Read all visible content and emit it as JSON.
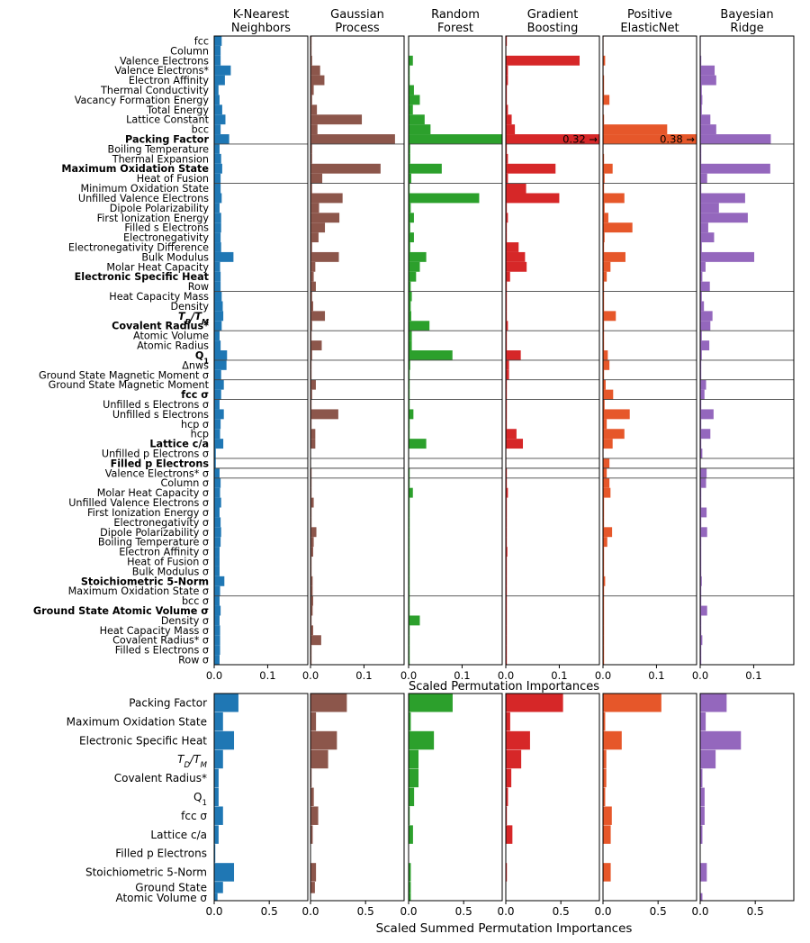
{
  "chart_data": {
    "type": "bar",
    "orientation": "horizontal",
    "models": [
      {
        "title": [
          "K-Nearest",
          "Neighbors"
        ],
        "color": "#1f77b4"
      },
      {
        "title": [
          "Gaussian",
          "Process"
        ],
        "color": "#8c564b"
      },
      {
        "title": [
          "Random",
          "Forest"
        ],
        "color": "#2ca02c"
      },
      {
        "title": [
          "Gradient",
          "Boosting"
        ],
        "color": "#d62728"
      },
      {
        "title": [
          "Positive",
          "ElasticNet"
        ],
        "color": "#e6572a"
      },
      {
        "title": [
          "Bayesian",
          "Ridge"
        ],
        "color": "#9467bd"
      }
    ],
    "top": {
      "xlabel": "Scaled Permutation Importances",
      "xlim": [
        0,
        0.175
      ],
      "xticks": [
        0,
        0.1
      ],
      "xtick_labels": [
        "0.0",
        "0.1"
      ],
      "annotations": [
        {
          "model": 3,
          "text": "0.32 →",
          "feature": "Packing Factor"
        },
        {
          "model": 4,
          "text": "0.38 →",
          "feature": "Packing Factor"
        }
      ],
      "group_boundaries_after_index": [
        10,
        14,
        25,
        29,
        32,
        34,
        36,
        42,
        43,
        44,
        56
      ],
      "features": [
        {
          "label": "fcc",
          "bold": false,
          "values": [
            0.014,
            0.002,
            0.001,
            0.002,
            0.001,
            0.001
          ]
        },
        {
          "label": "Column",
          "bold": false,
          "values": [
            0.012,
            0.002,
            0.001,
            0.001,
            0.001,
            0.001
          ]
        },
        {
          "label": "Valence Electrons",
          "bold": false,
          "values": [
            0.012,
            0.003,
            0.008,
            0.138,
            0.004,
            0.002
          ]
        },
        {
          "label": "Valence Electrons*",
          "bold": false,
          "values": [
            0.031,
            0.018,
            0.002,
            0.004,
            0.001,
            0.027
          ]
        },
        {
          "label": "Electron Affinity",
          "bold": false,
          "values": [
            0.02,
            0.026,
            0.002,
            0.004,
            0.002,
            0.03
          ]
        },
        {
          "label": "Thermal Conductivity",
          "bold": false,
          "values": [
            0.008,
            0.006,
            0.01,
            0.002,
            0.002,
            0.003
          ]
        },
        {
          "label": "Vacancy Formation Energy",
          "bold": false,
          "values": [
            0.01,
            0.003,
            0.021,
            0.002,
            0.012,
            0.004
          ]
        },
        {
          "label": "Total Energy",
          "bold": false,
          "values": [
            0.015,
            0.012,
            0.008,
            0.004,
            0.001,
            0.003
          ]
        },
        {
          "label": "Lattice Constant",
          "bold": false,
          "values": [
            0.021,
            0.096,
            0.03,
            0.011,
            0.002,
            0.019
          ]
        },
        {
          "label": "bcc",
          "bold": false,
          "values": [
            0.012,
            0.013,
            0.041,
            0.017,
            0.12,
            0.03
          ]
        },
        {
          "label": "Packing Factor",
          "bold": true,
          "values": [
            0.028,
            0.158,
            0.175,
            0.175,
            0.175,
            0.132
          ]
        },
        {
          "label": "Boiling Temperature",
          "bold": false,
          "values": [
            0.01,
            0.003,
            0.003,
            0.002,
            0.001,
            0.002
          ]
        },
        {
          "label": "Thermal Expansion",
          "bold": false,
          "values": [
            0.013,
            0.003,
            0.003,
            0.004,
            0.002,
            0.002
          ]
        },
        {
          "label": "Maximum Oxidation State",
          "bold": true,
          "values": [
            0.015,
            0.131,
            0.062,
            0.093,
            0.018,
            0.131
          ]
        },
        {
          "label": "Heat of Fusion",
          "bold": false,
          "values": [
            0.012,
            0.022,
            0.005,
            0.004,
            0.003,
            0.013
          ]
        },
        {
          "label": "Minimum Oxidation State",
          "bold": false,
          "values": [
            0.012,
            0.003,
            0.002,
            0.038,
            0.002,
            0.002
          ]
        },
        {
          "label": "Unfilled Valence Electrons",
          "bold": false,
          "values": [
            0.014,
            0.06,
            0.132,
            0.1,
            0.04,
            0.084
          ]
        },
        {
          "label": "Dipole Polarizability",
          "bold": false,
          "values": [
            0.01,
            0.016,
            0.004,
            0.002,
            0.003,
            0.035
          ]
        },
        {
          "label": "First Ionization Energy",
          "bold": false,
          "values": [
            0.013,
            0.054,
            0.01,
            0.004,
            0.01,
            0.089
          ]
        },
        {
          "label": "Filled s Electrons",
          "bold": false,
          "values": [
            0.013,
            0.027,
            0.003,
            0.002,
            0.055,
            0.015
          ]
        },
        {
          "label": "Electronegativity",
          "bold": false,
          "values": [
            0.012,
            0.015,
            0.01,
            0.002,
            0.003,
            0.026
          ]
        },
        {
          "label": "Electronegativity Difference",
          "bold": false,
          "values": [
            0.013,
            0.003,
            0.003,
            0.024,
            0.002,
            0.003
          ]
        },
        {
          "label": "Bulk Modulus",
          "bold": false,
          "values": [
            0.036,
            0.053,
            0.033,
            0.036,
            0.042,
            0.101
          ]
        },
        {
          "label": "Molar Heat Capacity",
          "bold": false,
          "values": [
            0.011,
            0.009,
            0.021,
            0.039,
            0.014,
            0.01
          ]
        },
        {
          "label": "Electronic Specific Heat",
          "bold": true,
          "values": [
            0.012,
            0.006,
            0.014,
            0.008,
            0.007,
            0.004
          ]
        },
        {
          "label": "Row",
          "bold": false,
          "values": [
            0.012,
            0.01,
            0.004,
            0.002,
            0.002,
            0.018
          ]
        },
        {
          "label": "Heat Capacity Mass",
          "bold": false,
          "values": [
            0.014,
            0.003,
            0.006,
            0.002,
            0.002,
            0.003
          ]
        },
        {
          "label": "Density",
          "bold": false,
          "values": [
            0.016,
            0.005,
            0.004,
            0.002,
            0.002,
            0.007
          ]
        },
        {
          "label": "T_D/T_M",
          "bold": true,
          "values": [
            0.017,
            0.027,
            0.005,
            0.002,
            0.024,
            0.023
          ]
        },
        {
          "label": "Covalent Radius*",
          "bold": true,
          "values": [
            0.014,
            0.003,
            0.039,
            0.004,
            0.002,
            0.019
          ]
        },
        {
          "label": "Atomic Volume",
          "bold": false,
          "values": [
            0.01,
            0.002,
            0.006,
            0.002,
            0.002,
            0.003
          ]
        },
        {
          "label": "Atomic Radius",
          "bold": false,
          "values": [
            0.012,
            0.021,
            0.006,
            0.002,
            0.002,
            0.017
          ]
        },
        {
          "label": "Q_1",
          "bold": true,
          "values": [
            0.024,
            0.003,
            0.082,
            0.028,
            0.009,
            0.003
          ]
        },
        {
          "label": "Δnws",
          "bold": false,
          "values": [
            0.023,
            0.002,
            0.003,
            0.006,
            0.012,
            0.002
          ]
        },
        {
          "label": "Ground State Magnetic Moment σ",
          "bold": false,
          "values": [
            0.013,
            0.002,
            0.002,
            0.006,
            0.002,
            0.002
          ]
        },
        {
          "label": "Ground State Magnetic Moment",
          "bold": false,
          "values": [
            0.018,
            0.01,
            0.002,
            0.002,
            0.005,
            0.011
          ]
        },
        {
          "label": "fcc σ",
          "bold": true,
          "values": [
            0.013,
            0.003,
            0.002,
            0.002,
            0.019,
            0.008
          ]
        },
        {
          "label": "Unfilled s Electrons σ",
          "bold": false,
          "values": [
            0.01,
            0.002,
            0.002,
            0.002,
            0.003,
            0.002
          ]
        },
        {
          "label": "Unfilled s Electrons",
          "bold": false,
          "values": [
            0.018,
            0.052,
            0.009,
            0.002,
            0.05,
            0.025
          ]
        },
        {
          "label": "hcp σ",
          "bold": false,
          "values": [
            0.012,
            0.002,
            0.002,
            0.002,
            0.007,
            0.002
          ]
        },
        {
          "label": "hcp",
          "bold": false,
          "values": [
            0.011,
            0.009,
            0.002,
            0.02,
            0.04,
            0.019
          ]
        },
        {
          "label": "Lattice c/a",
          "bold": true,
          "values": [
            0.017,
            0.009,
            0.033,
            0.032,
            0.018,
            0.002
          ]
        },
        {
          "label": "Unfilled p Electrons σ",
          "bold": false,
          "values": [
            0.003,
            0.001,
            0.001,
            0.001,
            0.001,
            0.004
          ]
        },
        {
          "label": "Filled p Electrons",
          "bold": true,
          "values": [
            0.003,
            0.001,
            0.001,
            0.001,
            0.012,
            0.001
          ]
        },
        {
          "label": "Valence Electrons* σ",
          "bold": false,
          "values": [
            0.01,
            0.002,
            0.002,
            0.002,
            0.007,
            0.012
          ]
        },
        {
          "label": "Column σ",
          "bold": false,
          "values": [
            0.012,
            0.002,
            0.002,
            0.002,
            0.012,
            0.011
          ]
        },
        {
          "label": "Molar Heat Capacity σ",
          "bold": false,
          "values": [
            0.011,
            0.002,
            0.008,
            0.004,
            0.014,
            0.002
          ]
        },
        {
          "label": "Unfilled Valence Electrons σ",
          "bold": false,
          "values": [
            0.013,
            0.006,
            0.002,
            0.002,
            0.002,
            0.002
          ]
        },
        {
          "label": "First Ionization Energy σ",
          "bold": false,
          "values": [
            0.01,
            0.002,
            0.002,
            0.002,
            0.002,
            0.012
          ]
        },
        {
          "label": "Electronegativity σ",
          "bold": false,
          "values": [
            0.012,
            0.002,
            0.002,
            0.002,
            0.002,
            0.002
          ]
        },
        {
          "label": "Dipole Polarizability σ",
          "bold": false,
          "values": [
            0.013,
            0.011,
            0.002,
            0.002,
            0.017,
            0.013
          ]
        },
        {
          "label": "Boiling Temperature σ",
          "bold": false,
          "values": [
            0.012,
            0.006,
            0.002,
            0.002,
            0.008,
            0.002
          ]
        },
        {
          "label": "Electron Affinity σ",
          "bold": false,
          "values": [
            0.01,
            0.005,
            0.002,
            0.003,
            0.002,
            0.002
          ]
        },
        {
          "label": "Heat of Fusion σ",
          "bold": false,
          "values": [
            0.01,
            0.002,
            0.002,
            0.002,
            0.002,
            0.002
          ]
        },
        {
          "label": "Bulk Modulus σ",
          "bold": false,
          "values": [
            0.01,
            0.002,
            0.002,
            0.002,
            0.002,
            0.002
          ]
        },
        {
          "label": "Stoichiometric 5-Norm",
          "bold": true,
          "values": [
            0.019,
            0.004,
            0.002,
            0.002,
            0.004,
            0.003
          ]
        },
        {
          "label": "Maximum Oxidation State σ",
          "bold": false,
          "values": [
            0.011,
            0.004,
            0.002,
            0.002,
            0.002,
            0.002
          ]
        },
        {
          "label": "bcc σ",
          "bold": false,
          "values": [
            0.01,
            0.005,
            0.002,
            0.002,
            0.002,
            0.002
          ]
        },
        {
          "label": "Ground State Atomic Volume σ",
          "bold": true,
          "values": [
            0.012,
            0.004,
            0.002,
            0.002,
            0.002,
            0.013
          ]
        },
        {
          "label": "Density σ",
          "bold": false,
          "values": [
            0.01,
            0.002,
            0.021,
            0.002,
            0.002,
            0.002
          ]
        },
        {
          "label": "Heat Capacity Mass σ",
          "bold": false,
          "values": [
            0.011,
            0.005,
            0.002,
            0.002,
            0.002,
            0.002
          ]
        },
        {
          "label": "Covalent Radius* σ",
          "bold": false,
          "values": [
            0.011,
            0.02,
            0.002,
            0.002,
            0.002,
            0.004
          ]
        },
        {
          "label": "Filled s Electrons σ",
          "bold": false,
          "values": [
            0.011,
            0.002,
            0.002,
            0.002,
            0.002,
            0.002
          ]
        },
        {
          "label": "Row σ",
          "bold": false,
          "values": [
            0.01,
            0.002,
            0.002,
            0.002,
            0.002,
            0.002
          ]
        }
      ]
    },
    "bottom": {
      "xlabel": "Scaled Summed Permutation Importances",
      "xlim": [
        0,
        0.85
      ],
      "xticks": [
        0,
        0.5
      ],
      "xtick_labels": [
        "0.0",
        "0.5"
      ],
      "features": [
        {
          "label": "Packing Factor",
          "values": [
            0.22,
            0.33,
            0.4,
            0.52,
            0.53,
            0.24
          ]
        },
        {
          "label": "Maximum Oxidation State",
          "values": [
            0.08,
            0.05,
            0.02,
            0.04,
            0.02,
            0.05
          ]
        },
        {
          "label": "Electronic Specific Heat",
          "values": [
            0.18,
            0.24,
            0.23,
            0.22,
            0.17,
            0.37
          ]
        },
        {
          "label": "T_D/T_M",
          "values": [
            0.08,
            0.16,
            0.09,
            0.14,
            0.03,
            0.14
          ]
        },
        {
          "label": "Covalent Radius*",
          "values": [
            0.04,
            0.01,
            0.09,
            0.05,
            0.03,
            0.02
          ]
        },
        {
          "label": "Q_1",
          "values": [
            0.04,
            0.03,
            0.05,
            0.02,
            0.02,
            0.04
          ]
        },
        {
          "label": "fcc σ",
          "values": [
            0.08,
            0.07,
            0.01,
            0.01,
            0.08,
            0.04
          ]
        },
        {
          "label": "Lattice c/a",
          "values": [
            0.04,
            0.02,
            0.04,
            0.06,
            0.07,
            0.02
          ]
        },
        {
          "label": "Filled p Electrons",
          "values": [
            0.01,
            0.0,
            0.0,
            0.0,
            0.0,
            0.0
          ]
        },
        {
          "label": "Stoichiometric 5-Norm",
          "values": [
            0.18,
            0.05,
            0.02,
            0.01,
            0.07,
            0.06
          ]
        },
        {
          "label": "Ground State",
          "values": [
            0.08,
            0.04,
            0.02,
            0.0,
            0.0,
            0.0
          ]
        },
        {
          "label": "Atomic Volume σ",
          "values": [
            0.03,
            0.0,
            0.02,
            0.0,
            0.0,
            0.02
          ]
        }
      ]
    }
  }
}
